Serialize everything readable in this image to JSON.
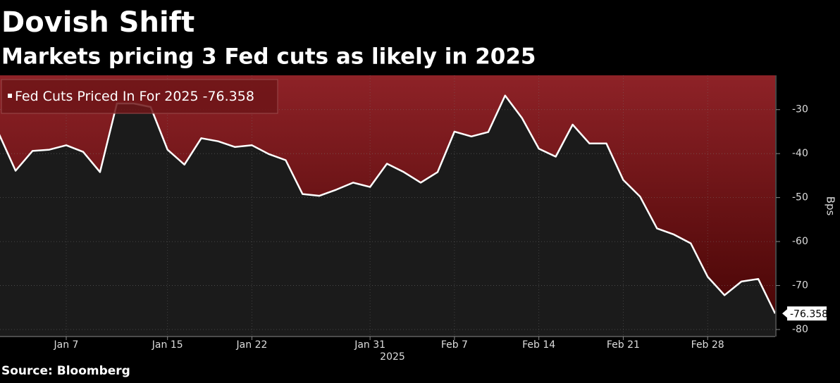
{
  "chart_data": {
    "type": "line",
    "title": "Dovish Shift",
    "subtitle": "Markets pricing 3 Fed cuts as likely in 2025",
    "source": "Source: Bloomberg",
    "xlabel": "2025",
    "ylabel": "Bps",
    "categories": [
      null,
      null,
      null,
      null,
      "Jan 7",
      null,
      null,
      null,
      null,
      null,
      "Jan 15",
      null,
      null,
      null,
      null,
      "Jan 22",
      null,
      null,
      null,
      null,
      null,
      null,
      "Jan 31",
      null,
      null,
      null,
      null,
      "Feb 7",
      null,
      null,
      null,
      null,
      "Feb 14",
      null,
      null,
      null,
      null,
      "Feb 21",
      null,
      null,
      null,
      null,
      "Feb 28",
      null,
      null,
      null,
      null
    ],
    "series": [
      {
        "name": "Fed Cuts Priced In For 2025",
        "color": "#ffffff",
        "values": [
          -35.4,
          -43.9,
          -39.4,
          -39.1,
          -38.1,
          -39.6,
          -44.2,
          -28.6,
          -28.6,
          -29.4,
          -39.1,
          -42.5,
          -36.5,
          -37.2,
          -38.5,
          -38.1,
          -40.1,
          -41.5,
          -49.2,
          -49.6,
          -48.2,
          -46.6,
          -47.6,
          -42.3,
          -44.2,
          -46.6,
          -44.2,
          -35.0,
          -36.1,
          -35.1,
          -26.8,
          -31.9,
          -38.9,
          -40.7,
          -33.4,
          -37.7,
          -37.7,
          -46.0,
          -49.8,
          -57.0,
          -58.4,
          -60.4,
          -68.0,
          -72.2,
          -69.1,
          -68.5,
          -76.358
        ]
      }
    ],
    "ylim": [
      -81.6,
      -22.2
    ],
    "yticks": [
      -30,
      -40,
      -50,
      -60,
      -70,
      -80
    ],
    "grid": true,
    "legend": "top-left",
    "fill_above": "#8c1f24",
    "fill_below": "#1b1b1b"
  }
}
